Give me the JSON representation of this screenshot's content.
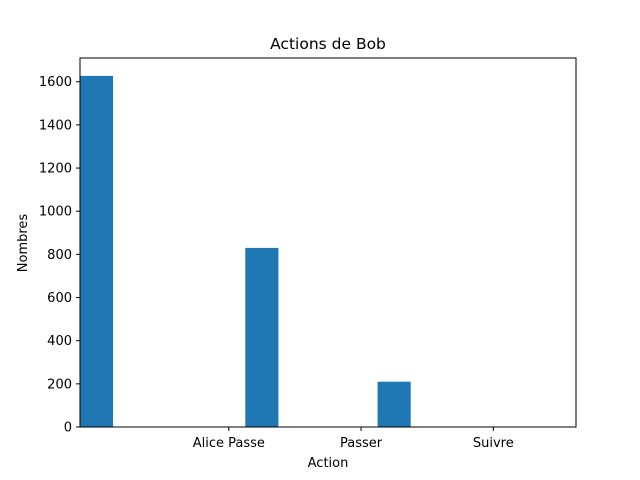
{
  "chart_data": {
    "type": "bar",
    "title": "Actions de Bob",
    "xlabel": "Action",
    "ylabel": "Nombres",
    "xticks": [
      "Alice Passe",
      "Passer",
      "Suivre"
    ],
    "bars": [
      {
        "x": 0.0,
        "value": 1627
      },
      {
        "x": 1.25,
        "value": 830
      },
      {
        "x": 2.25,
        "value": 210
      }
    ],
    "bar_width": 0.25,
    "xlim": [
      -0.125,
      3.625
    ],
    "ylim": [
      0,
      1710
    ],
    "yticks": [
      0,
      200,
      400,
      600,
      800,
      1000,
      1200,
      1400,
      1600
    ],
    "grid": false,
    "bar_color": "#1f77b4"
  }
}
